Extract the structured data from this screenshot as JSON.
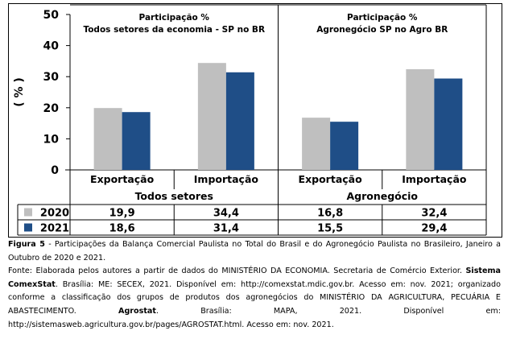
{
  "chart_data": {
    "type": "bar",
    "ylabel": "( % )",
    "ylim": [
      0,
      50
    ],
    "yticks": [
      0,
      10,
      20,
      30,
      40,
      50
    ],
    "grid": false,
    "panels": [
      {
        "title_line1": "Participação %",
        "title_line2": "Todos setores da economia - SP no BR"
      },
      {
        "title_line1": "Participação %",
        "title_line2": "Agronegócio SP  no Agro  BR"
      }
    ],
    "categories": [
      "Exportação",
      "Importação",
      "Exportação",
      "Importação"
    ],
    "groups": [
      "Todos setores",
      "Agronegócio"
    ],
    "series": [
      {
        "name": "2020",
        "color": "#bfbfbf",
        "values": [
          19.9,
          34.4,
          16.8,
          32.4
        ],
        "labels": [
          "19,9",
          "34,4",
          "16,8",
          "32,4"
        ]
      },
      {
        "name": "2021",
        "color": "#1f4e87",
        "values": [
          18.6,
          31.4,
          15.5,
          29.4
        ],
        "labels": [
          "18,6",
          "31,4",
          "15,5",
          "29,4"
        ]
      }
    ]
  },
  "caption": {
    "figure_label": "Figura 5",
    "figure_text": " - Participações da Balança Comercial Paulista no Total do Brasil e do Agronegócio Paulista no Brasileiro, Janeiro a Outubro de 2020 e 2021.",
    "source_a": "Fonte: Elaborada pelos autores a partir de dados do MINISTÉRIO DA ECONOMIA. Secretaria de Comércio Exterior. ",
    "source_b": "Sistema ComexStat",
    "source_c": ". Brasília: ME: SECEX, 2021. Disponível em: http://comexstat.mdic.gov.br. Acesso em: nov. 2021; organizado conforme a classificação dos grupos de produtos dos agronegócios do MINISTÉRIO DA AGRICULTURA, PECUÁRIA E ABASTECIMENTO. ",
    "source_d": "Agrostat",
    "source_e": ". Brasília: MAPA, 2021.  Disponível em: http://sistemasweb.agricultura.gov.br/pages/AGROSTAT.html. Acesso em: nov. 2021."
  }
}
